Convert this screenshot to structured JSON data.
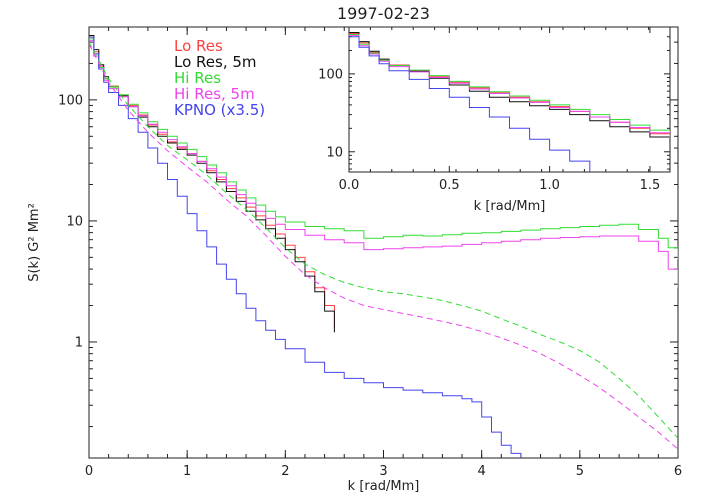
{
  "chart_data": [
    {
      "id": "main",
      "type": "line",
      "title": "1997-02-23",
      "xlabel": "k [rad/Mm]",
      "ylabel": "S(k) G² Mm²",
      "xlim": [
        0,
        6
      ],
      "ylim": [
        0.11,
        400
      ],
      "yscale": "log",
      "grid": false,
      "legend_position": "top-left",
      "xticks": [
        "0",
        "1",
        "2",
        "3",
        "4",
        "5",
        "6"
      ],
      "yticks": [
        "1",
        "10",
        "100"
      ],
      "series": [
        {
          "name": "Lo Res",
          "color": "#ff4040",
          "style": "step",
          "x": [
            0.0,
            0.05,
            0.1,
            0.15,
            0.2,
            0.3,
            0.4,
            0.5,
            0.6,
            0.7,
            0.8,
            0.9,
            1.0,
            1.1,
            1.2,
            1.3,
            1.4,
            1.5,
            1.6,
            1.7,
            1.8,
            1.9,
            2.0,
            2.1,
            2.2,
            2.3,
            2.4,
            2.5
          ],
          "y": [
            330,
            250,
            190,
            150,
            130,
            110,
            90,
            75,
            62,
            52,
            45,
            40,
            36,
            31,
            26,
            22,
            18.5,
            15.5,
            13,
            11,
            9.2,
            7.8,
            6.3,
            5.0,
            3.8,
            2.8,
            2.0,
            1.3
          ]
        },
        {
          "name": "Lo Res, 5m",
          "color": "#111111",
          "style": "step",
          "x": [
            0.0,
            0.05,
            0.1,
            0.15,
            0.2,
            0.3,
            0.4,
            0.5,
            0.6,
            0.7,
            0.8,
            0.9,
            1.0,
            1.1,
            1.2,
            1.3,
            1.4,
            1.5,
            1.6,
            1.7,
            1.8,
            1.9,
            2.0,
            2.1,
            2.2,
            2.3,
            2.4,
            2.5
          ],
          "y": [
            340,
            260,
            195,
            155,
            128,
            108,
            88,
            72,
            60,
            50,
            44,
            39,
            35,
            30,
            25,
            21,
            17.5,
            14.5,
            12,
            10.2,
            8.6,
            7.2,
            5.8,
            4.6,
            3.5,
            2.6,
            1.8,
            1.2
          ]
        },
        {
          "name": "Hi Res",
          "color": "#33dd33",
          "style": "step",
          "x": [
            0.0,
            0.05,
            0.1,
            0.15,
            0.2,
            0.3,
            0.4,
            0.5,
            0.6,
            0.7,
            0.8,
            0.9,
            1.0,
            1.1,
            1.2,
            1.3,
            1.4,
            1.5,
            1.6,
            1.7,
            1.8,
            1.9,
            2.0,
            2.2,
            2.4,
            2.6,
            2.8,
            3.0,
            3.2,
            3.4,
            3.6,
            3.8,
            4.0,
            4.2,
            4.4,
            4.6,
            4.8,
            5.0,
            5.2,
            5.4,
            5.6,
            5.8,
            5.9,
            6.0
          ],
          "y": [
            320,
            240,
            185,
            150,
            128,
            110,
            92,
            78,
            66,
            57,
            50,
            44,
            39,
            34,
            29,
            25,
            21,
            18,
            15.5,
            13.5,
            12,
            10.8,
            9.8,
            9.0,
            8.6,
            8.3,
            7.2,
            7.4,
            7.6,
            7.5,
            7.7,
            7.9,
            8.0,
            8.2,
            8.4,
            8.6,
            8.8,
            9.0,
            9.2,
            9.4,
            8.5,
            7.2,
            6.0,
            4.8
          ]
        },
        {
          "name": "Hi Res, 5m",
          "color": "#ee44ee",
          "style": "step",
          "x": [
            0.0,
            0.05,
            0.1,
            0.15,
            0.2,
            0.3,
            0.4,
            0.5,
            0.6,
            0.7,
            0.8,
            0.9,
            1.0,
            1.1,
            1.2,
            1.3,
            1.4,
            1.5,
            1.6,
            1.7,
            1.8,
            1.9,
            2.0,
            2.2,
            2.4,
            2.6,
            2.8,
            3.0,
            3.2,
            3.4,
            3.6,
            3.8,
            4.0,
            4.2,
            4.4,
            4.6,
            4.8,
            5.0,
            5.2,
            5.4,
            5.6,
            5.8,
            5.9,
            6.0
          ],
          "y": [
            310,
            230,
            180,
            145,
            124,
            106,
            88,
            74,
            63,
            54,
            47,
            41,
            36,
            31,
            27,
            23,
            19.5,
            16.5,
            14,
            12,
            10.5,
            9.4,
            8.5,
            7.6,
            7.0,
            6.6,
            5.8,
            5.9,
            6.0,
            6.1,
            6.2,
            6.4,
            6.6,
            6.8,
            7.0,
            7.2,
            7.3,
            7.4,
            7.5,
            7.5,
            6.8,
            5.6,
            4.0,
            2.8
          ]
        },
        {
          "name": "KPNO (x3.5)",
          "color": "#4444ee",
          "style": "step",
          "x": [
            0.0,
            0.05,
            0.1,
            0.15,
            0.2,
            0.3,
            0.4,
            0.5,
            0.6,
            0.7,
            0.8,
            0.9,
            1.0,
            1.1,
            1.2,
            1.3,
            1.4,
            1.5,
            1.6,
            1.7,
            1.8,
            1.9,
            2.0,
            2.2,
            2.4,
            2.6,
            2.8,
            3.0,
            3.2,
            3.4,
            3.6,
            3.8,
            3.9,
            4.0,
            4.1,
            4.2,
            4.3,
            4.4
          ],
          "y": [
            330,
            240,
            180,
            140,
            115,
            90,
            70,
            54,
            40,
            30,
            22,
            16,
            11.5,
            8.3,
            6.1,
            4.4,
            3.3,
            2.5,
            1.9,
            1.5,
            1.25,
            1.05,
            0.88,
            0.68,
            0.56,
            0.5,
            0.46,
            0.42,
            0.4,
            0.38,
            0.36,
            0.34,
            0.32,
            0.24,
            0.18,
            0.14,
            0.12,
            0.11
          ]
        },
        {
          "name": "",
          "color": "#33dd33",
          "style": "dashed",
          "x": [
            0.0,
            0.2,
            0.4,
            0.6,
            0.8,
            1.0,
            1.2,
            1.4,
            1.6,
            1.8,
            2.0,
            2.2,
            2.4,
            2.6,
            2.8,
            3.0,
            3.2,
            3.4,
            3.6,
            3.8,
            4.0,
            4.2,
            4.4,
            4.6,
            4.8,
            5.0,
            5.2,
            5.4,
            5.6,
            5.8,
            6.0
          ],
          "y": [
            300,
            150,
            90,
            60,
            42,
            32,
            24,
            17,
            12.5,
            8.8,
            6.0,
            4.4,
            3.6,
            3.1,
            2.8,
            2.6,
            2.5,
            2.35,
            2.2,
            2.0,
            1.8,
            1.55,
            1.35,
            1.15,
            1.0,
            0.85,
            0.68,
            0.5,
            0.36,
            0.24,
            0.16
          ]
        },
        {
          "name": "",
          "color": "#ee44ee",
          "style": "dashed",
          "x": [
            0.0,
            0.2,
            0.4,
            0.6,
            0.8,
            1.0,
            1.2,
            1.4,
            1.6,
            1.8,
            2.0,
            2.2,
            2.4,
            2.6,
            2.8,
            3.0,
            3.2,
            3.4,
            3.6,
            3.8,
            4.0,
            4.2,
            4.4,
            4.6,
            4.8,
            5.0,
            5.2,
            5.4,
            5.6,
            5.8,
            6.0
          ],
          "y": [
            290,
            140,
            82,
            54,
            38,
            28,
            21,
            15,
            11,
            7.6,
            5.1,
            3.6,
            2.8,
            2.3,
            2.0,
            1.85,
            1.72,
            1.6,
            1.48,
            1.36,
            1.22,
            1.08,
            0.94,
            0.8,
            0.66,
            0.53,
            0.42,
            0.32,
            0.24,
            0.18,
            0.13
          ]
        }
      ]
    },
    {
      "id": "inset",
      "type": "line",
      "xlabel": "k [rad/Mm]",
      "xlim": [
        0,
        1.6
      ],
      "ylim": [
        5.5,
        400
      ],
      "yscale": "log",
      "grid": false,
      "xticks": [
        "0.0",
        "0.5",
        "1.0",
        "1.5"
      ],
      "yticks": [
        "10",
        "100"
      ],
      "series": [
        {
          "name": "Lo Res",
          "color": "#ff4040",
          "style": "step",
          "x": [
            0.0,
            0.05,
            0.1,
            0.15,
            0.2,
            0.3,
            0.4,
            0.5,
            0.6,
            0.7,
            0.8,
            0.9,
            1.0,
            1.1,
            1.2,
            1.3,
            1.4,
            1.5,
            1.6
          ],
          "y": [
            330,
            250,
            190,
            150,
            130,
            110,
            92,
            78,
            66,
            57,
            50,
            44,
            38,
            33,
            28,
            24,
            20,
            17,
            14
          ]
        },
        {
          "name": "Lo Res, 5m",
          "color": "#111111",
          "style": "step",
          "x": [
            0.0,
            0.05,
            0.1,
            0.15,
            0.2,
            0.3,
            0.4,
            0.5,
            0.6,
            0.7,
            0.8,
            0.9,
            1.0,
            1.1,
            1.2,
            1.3,
            1.4,
            1.5,
            1.6
          ],
          "y": [
            340,
            260,
            195,
            155,
            128,
            108,
            88,
            72,
            60,
            50,
            44,
            39,
            35,
            30,
            25,
            21,
            18,
            15.5,
            13
          ]
        },
        {
          "name": "Hi Res",
          "color": "#33dd33",
          "style": "step",
          "x": [
            0.0,
            0.05,
            0.1,
            0.15,
            0.2,
            0.3,
            0.4,
            0.5,
            0.6,
            0.7,
            0.8,
            0.9,
            1.0,
            1.1,
            1.2,
            1.3,
            1.4,
            1.5,
            1.6
          ],
          "y": [
            320,
            240,
            185,
            150,
            128,
            112,
            95,
            80,
            68,
            59,
            52,
            46,
            40,
            35,
            30,
            26,
            22,
            19,
            16
          ]
        },
        {
          "name": "Hi Res, 5m",
          "color": "#ee44ee",
          "style": "step",
          "x": [
            0.0,
            0.05,
            0.1,
            0.15,
            0.2,
            0.3,
            0.4,
            0.5,
            0.6,
            0.7,
            0.8,
            0.9,
            1.0,
            1.1,
            1.2,
            1.3,
            1.4,
            1.5,
            1.6
          ],
          "y": [
            310,
            230,
            180,
            145,
            124,
            106,
            90,
            76,
            64,
            56,
            49,
            43,
            37,
            33,
            28,
            24,
            20.5,
            17.5,
            15
          ]
        },
        {
          "name": "KPNO (x3.5)",
          "color": "#4444ee",
          "style": "step",
          "x": [
            0.0,
            0.05,
            0.1,
            0.15,
            0.2,
            0.3,
            0.4,
            0.5,
            0.6,
            0.7,
            0.8,
            0.9,
            1.0,
            1.1,
            1.2
          ],
          "y": [
            300,
            220,
            170,
            135,
            110,
            85,
            65,
            50,
            37,
            28,
            20,
            14.5,
            10.5,
            7.6,
            5.6
          ]
        }
      ]
    }
  ]
}
